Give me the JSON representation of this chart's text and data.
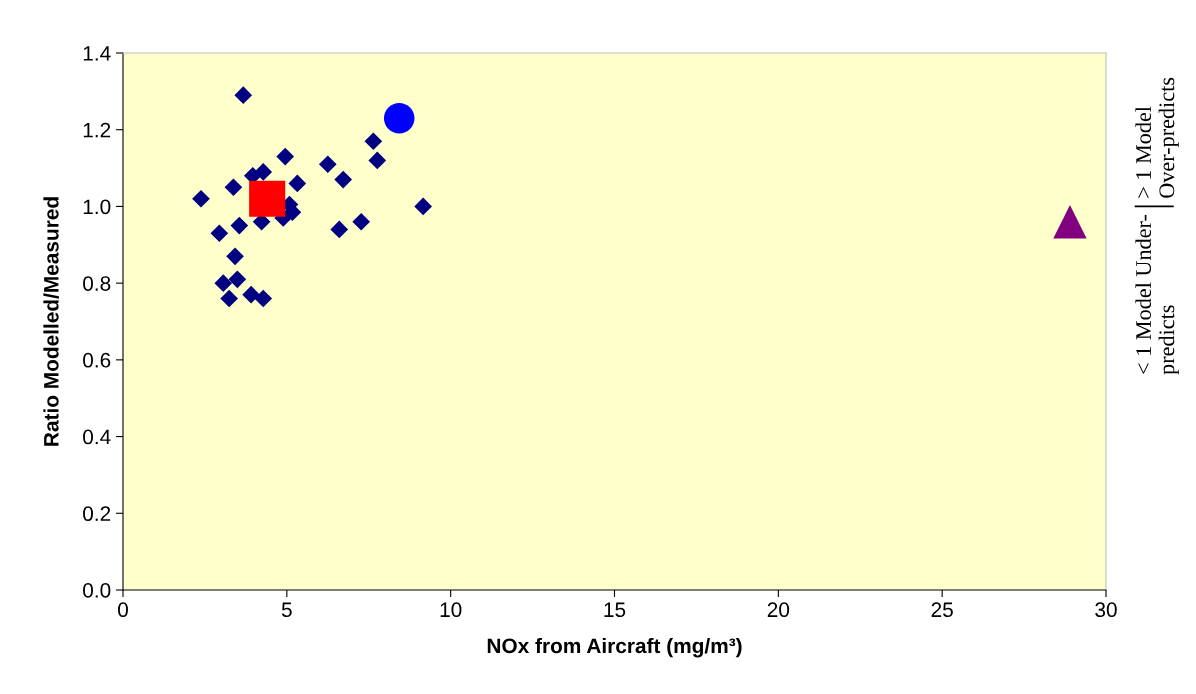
{
  "chart_data": {
    "type": "scatter",
    "xlabel": "NOx from Aircraft (mg/m³)",
    "ylabel": "Ratio Modelled/Measured",
    "xlim": [
      0,
      30
    ],
    "xticks": [
      0,
      5,
      10,
      15,
      20,
      25,
      30
    ],
    "ylim": [
      0,
      1.4
    ],
    "yticks": [
      {
        "value": 0,
        "label": "0.0"
      },
      {
        "value": 0.2,
        "label": "0.2"
      },
      {
        "value": 0.4,
        "label": "0.4"
      },
      {
        "value": 0.6,
        "label": "0.6"
      },
      {
        "value": 0.8,
        "label": "0.8"
      },
      {
        "value": 1.0,
        "label": "1.0"
      },
      {
        "value": 1.2,
        "label": "1.2"
      },
      {
        "value": 1.4,
        "label": "1.4"
      }
    ],
    "grid": false,
    "legend": false,
    "annotations": [
      "> 1 Model\nOver-predicts",
      "< 1 Model Under-\npredicts"
    ],
    "series": [
      {
        "color": "#000080",
        "marker": "diamond",
        "x": [
          3.67,
          7.64,
          7.76,
          4.95,
          6.25,
          6.72,
          3.96,
          4.28,
          5.32,
          3.37,
          2.38,
          5.08,
          5.17,
          4.89,
          9.16,
          4.23,
          3.55,
          2.94,
          7.27,
          6.6,
          3.42,
          3.06,
          3.49,
          3.24,
          3.91,
          4.28
        ],
        "values": [
          1.29,
          1.17,
          1.12,
          1.13,
          1.11,
          1.07,
          1.08,
          1.09,
          1.06,
          1.05,
          1.02,
          1.005,
          0.985,
          0.97,
          1.0,
          0.96,
          0.95,
          0.93,
          0.96,
          0.94,
          0.87,
          0.8,
          0.81,
          0.76,
          0.77,
          0.76
        ]
      },
      {
        "color": "#ff0000",
        "marker": "square",
        "x": [
          4.4
        ],
        "values": [
          1.02
        ]
      },
      {
        "color": "#0000ff",
        "marker": "circle",
        "x": [
          8.43
        ],
        "values": [
          1.23
        ]
      },
      {
        "color": "#800080",
        "marker": "triangle",
        "x": [
          28.9
        ],
        "values": [
          0.96
        ]
      }
    ]
  }
}
